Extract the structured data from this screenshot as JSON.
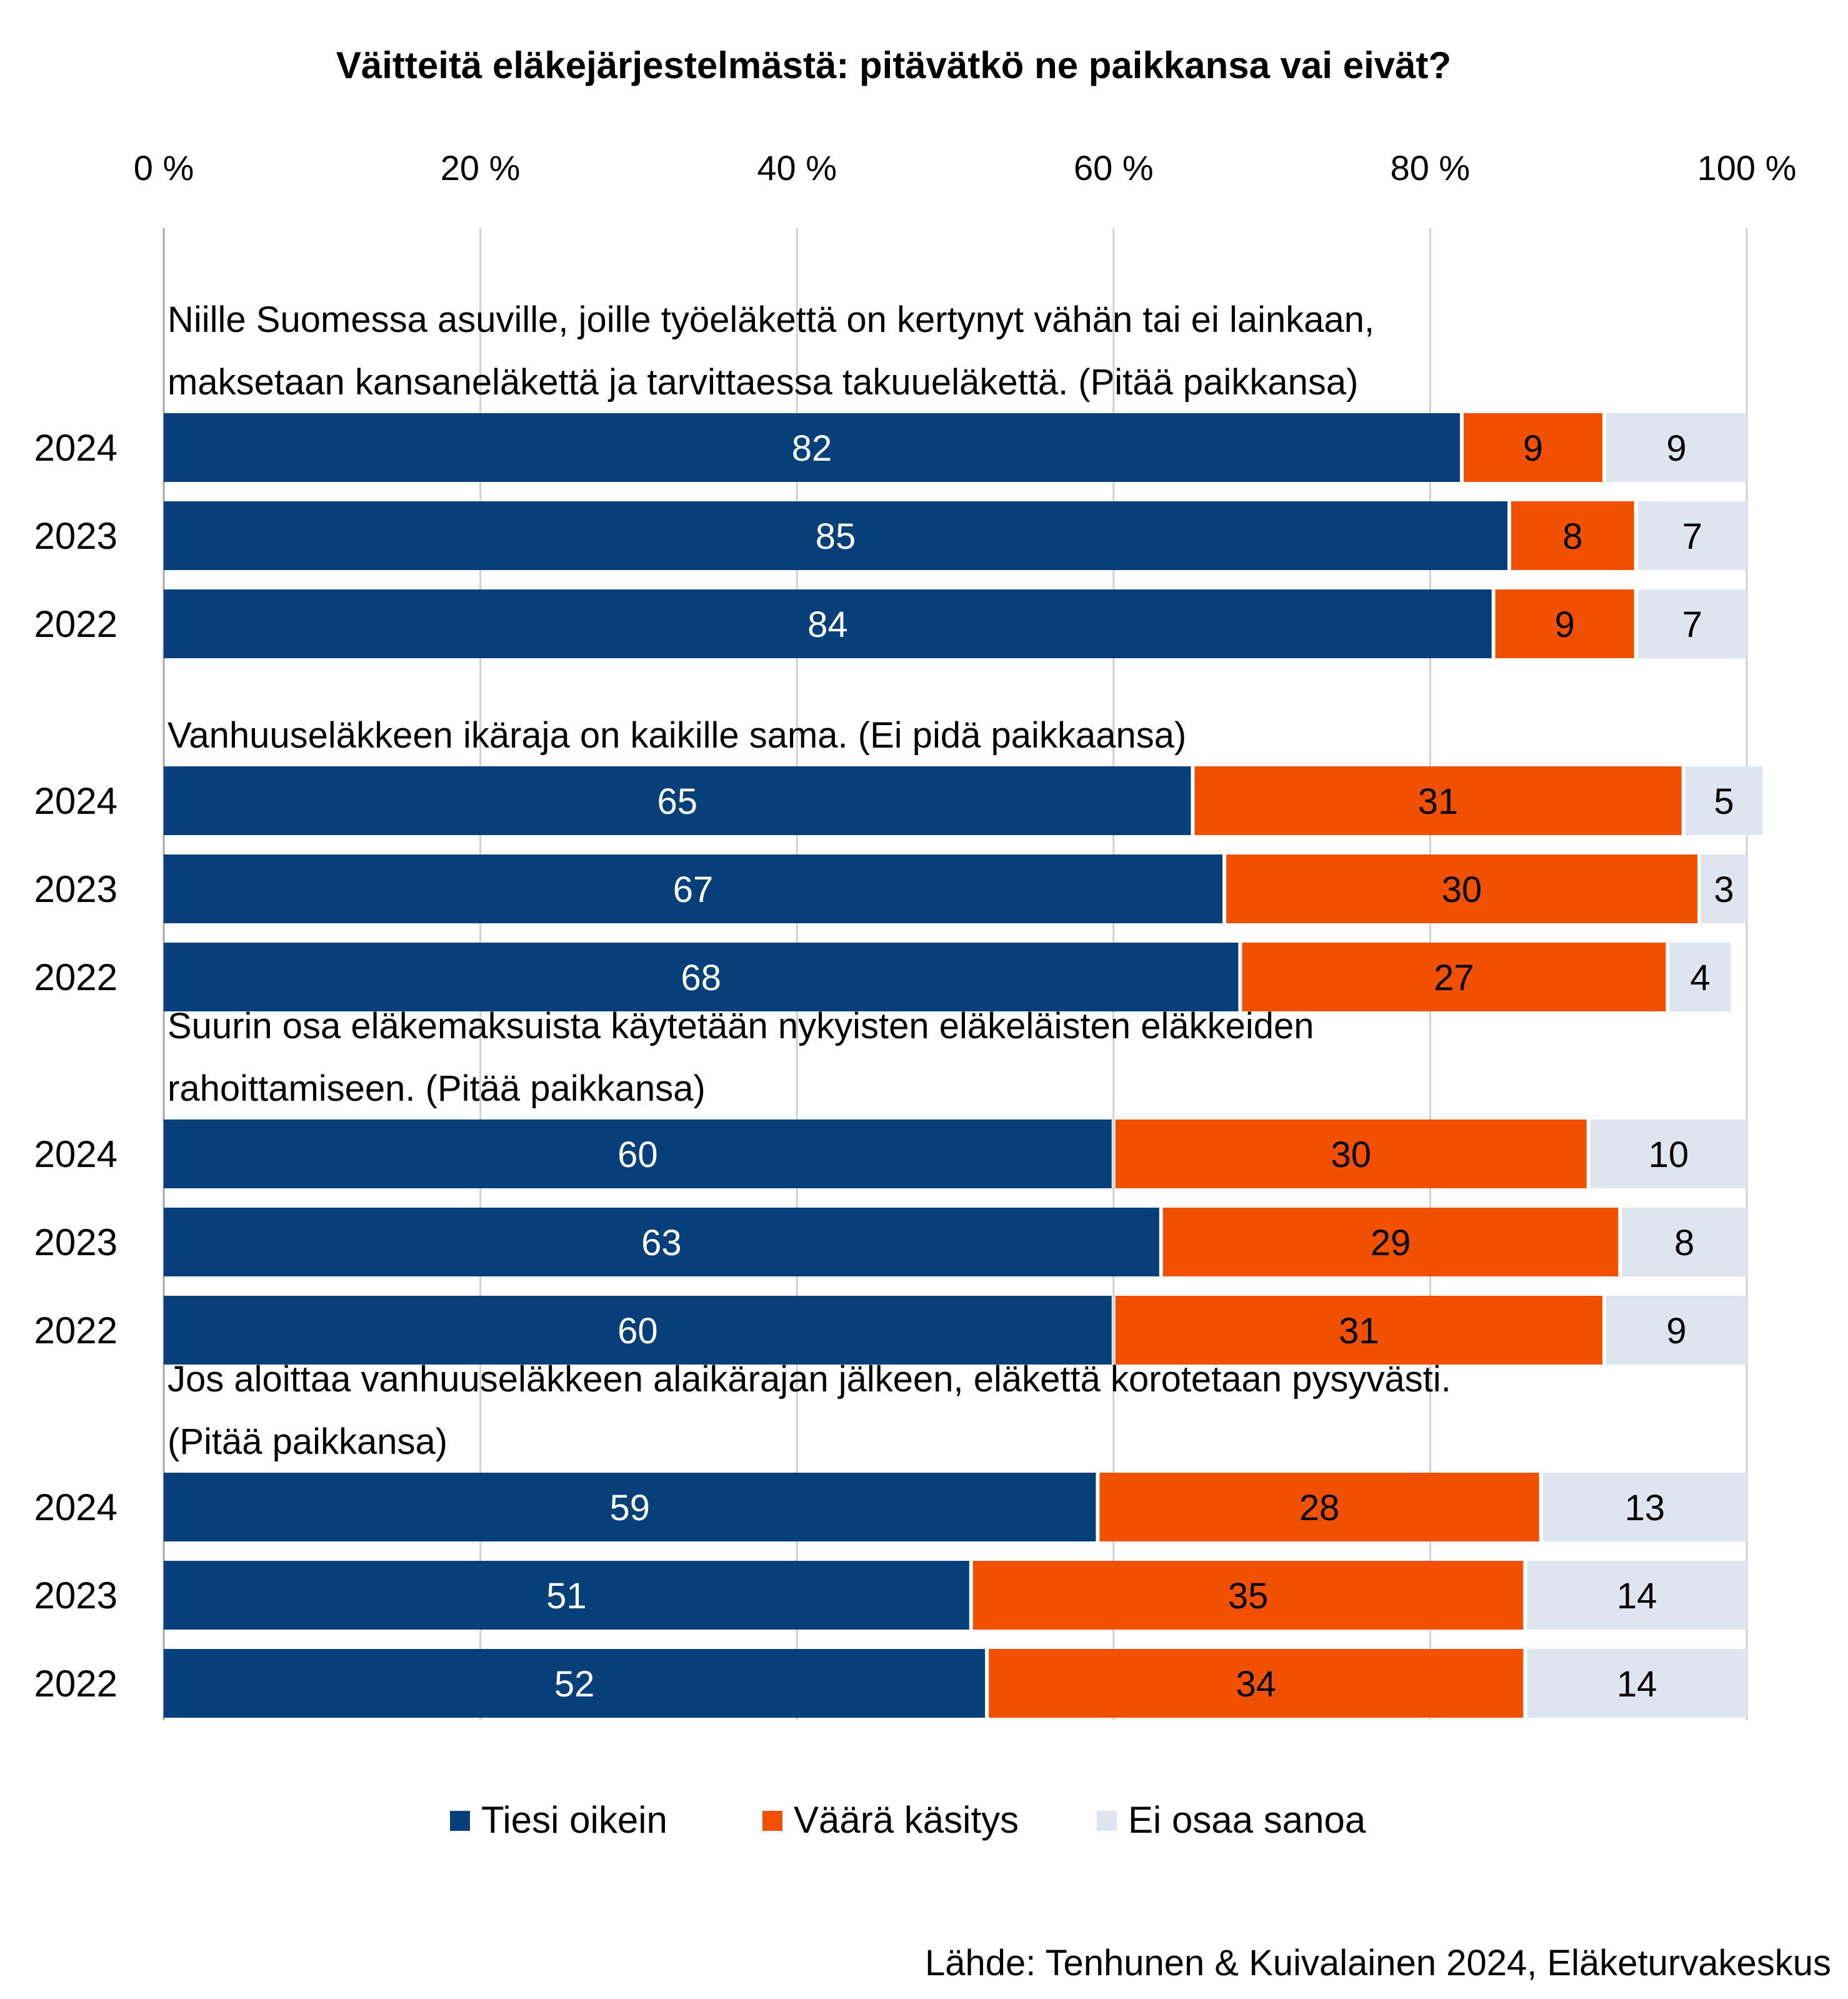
{
  "chart_data": {
    "type": "bar",
    "orientation": "horizontal",
    "stacked": true,
    "title": "Väitteitä eläkejärjestelmästä: pitävätkö ne paikkansa vai eivät?",
    "x_ticks": [
      "0 %",
      "20 %",
      "40 %",
      "60 %",
      "80 %",
      "100 %"
    ],
    "xlim": [
      0,
      100
    ],
    "grid": true,
    "legend_position": "bottom",
    "series": [
      {
        "name": "Tiesi oikein",
        "color": "#073f7a"
      },
      {
        "name": "Väärä käsitys",
        "color": "#f05000"
      },
      {
        "name": "Ei osaa sanoa",
        "color": "#dfe5ee"
      }
    ],
    "groups": [
      {
        "statement": [
          "Niille Suomessa asuville, joille työeläkettä on kertynyt vähän tai ei lainkaan,",
          "maksetaan kansaneläkettä ja tarvittaessa takuueläkettä. (Pitää paikkansa)"
        ],
        "rows": [
          {
            "year": "2024",
            "values": [
              82,
              9,
              9
            ]
          },
          {
            "year": "2023",
            "values": [
              85,
              8,
              7
            ]
          },
          {
            "year": "2022",
            "values": [
              84,
              9,
              7
            ]
          }
        ]
      },
      {
        "statement": [
          "Vanhuuseläkkeen ikäraja on kaikille sama. (Ei pidä paikkaansa)"
        ],
        "rows": [
          {
            "year": "2024",
            "values": [
              65,
              31,
              5
            ]
          },
          {
            "year": "2023",
            "values": [
              67,
              30,
              3
            ]
          },
          {
            "year": "2022",
            "values": [
              68,
              27,
              4
            ]
          }
        ]
      },
      {
        "statement": [
          "Suurin osa eläkemaksuista käytetään nykyisten eläkeläisten eläkkeiden",
          "rahoittamiseen. (Pitää paikkansa)"
        ],
        "rows": [
          {
            "year": "2024",
            "values": [
              60,
              30,
              10
            ]
          },
          {
            "year": "2023",
            "values": [
              63,
              29,
              8
            ]
          },
          {
            "year": "2022",
            "values": [
              60,
              31,
              9
            ]
          }
        ]
      },
      {
        "statement": [
          "Jos aloittaa vanhuuseläkkeen alaikärajan jälkeen, eläkettä korotetaan pysyvästi.",
          "(Pitää paikkansa)"
        ],
        "rows": [
          {
            "year": "2024",
            "values": [
              59,
              28,
              13
            ]
          },
          {
            "year": "2023",
            "values": [
              51,
              35,
              14
            ]
          },
          {
            "year": "2022",
            "values": [
              52,
              34,
              14
            ]
          }
        ]
      }
    ]
  },
  "source": "Lähde: Tenhunen & Kuivalainen 2024, Eläketurvakeskus"
}
